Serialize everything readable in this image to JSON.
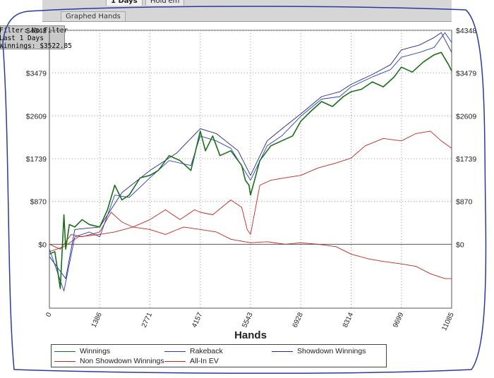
{
  "tabs": {
    "days_label": "1 Days",
    "hold_label": "Hold'em",
    "graphed_hands_label": "Graphed Hands"
  },
  "filter_info": {
    "line1": "Filter: No Filter",
    "line2": "Last  1 Days",
    "line3": "Winnings: $3522.85"
  },
  "colors": {
    "winnings": "#1a6e1a",
    "rakeback": "#2b3fbf",
    "showdown": "#1e2a8c",
    "non_showdown": "#c0271e",
    "all_in_ev": "#c0271e",
    "zero_line": "#555555",
    "grid": "#9a9a9a",
    "border_scribble": "#2a3a9e"
  },
  "chart_data": {
    "type": "line",
    "xlabel": "Hands",
    "ylabel": "",
    "xlim": [
      0,
      11085
    ],
    "ylim": [
      -1300,
      4348
    ],
    "x_ticks": [
      0,
      1386,
      2771,
      4157,
      5543,
      6928,
      8314,
      9699,
      11085
    ],
    "y_ticks": [
      0,
      870,
      1739,
      2609,
      3479,
      4348
    ],
    "y_tick_labels": [
      "$0",
      "$870",
      "$1739",
      "$2609",
      "$3479",
      "$4348"
    ],
    "grid": true,
    "legend_position": "bottom",
    "series": [
      {
        "name": "Winnings",
        "x": [
          0,
          150,
          300,
          400,
          450,
          550,
          700,
          900,
          1100,
          1386,
          1600,
          1800,
          2000,
          2200,
          2500,
          2771,
          3000,
          3300,
          3600,
          3900,
          4157,
          4300,
          4500,
          4700,
          5000,
          5300,
          5400,
          5500,
          5543,
          5800,
          6100,
          6400,
          6700,
          6928,
          7200,
          7500,
          7800,
          8100,
          8314,
          8600,
          8900,
          9200,
          9500,
          9699,
          10000,
          10300,
          10600,
          10800,
          11000,
          11085
        ],
        "values": [
          -200,
          -150,
          -900,
          600,
          -100,
          400,
          350,
          500,
          400,
          350,
          700,
          1200,
          900,
          1000,
          1350,
          1400,
          1500,
          1800,
          1700,
          1500,
          2300,
          1900,
          2200,
          1800,
          1900,
          1600,
          1300,
          1200,
          1000,
          1700,
          2000,
          2100,
          2200,
          2500,
          2700,
          2900,
          2800,
          3000,
          3100,
          3150,
          3300,
          3200,
          3400,
          3600,
          3500,
          3700,
          3850,
          3900,
          3650,
          3523
        ]
      },
      {
        "name": "Rakeback",
        "x": [
          0,
          400,
          700,
          1100,
          1386,
          1800,
          2200,
          2771,
          3300,
          3900,
          4157,
          4600,
          5000,
          5543,
          6000,
          6400,
          6928,
          7500,
          8000,
          8314,
          8900,
          9400,
          9699,
          10200,
          10600,
          10900,
          11085
        ],
        "values": [
          -100,
          -950,
          150,
          250,
          150,
          1000,
          950,
          1350,
          1700,
          1600,
          2200,
          2100,
          1950,
          1300,
          2000,
          2200,
          2600,
          2950,
          3000,
          3200,
          3400,
          3550,
          3800,
          3900,
          4000,
          4300,
          4100
        ]
      },
      {
        "name": "Showdown Winnings",
        "x": [
          0,
          450,
          700,
          1386,
          2000,
          2771,
          3500,
          4157,
          4600,
          5200,
          5543,
          6000,
          6500,
          6928,
          7500,
          8000,
          8314,
          8900,
          9400,
          9699,
          10200,
          10600,
          10800,
          11085
        ],
        "values": [
          -250,
          -700,
          300,
          350,
          1050,
          1500,
          1850,
          2350,
          2250,
          1900,
          1400,
          2100,
          2400,
          2650,
          3000,
          3100,
          3250,
          3450,
          3650,
          3950,
          4050,
          4200,
          4300,
          3900
        ]
      },
      {
        "name": "Non Showdown Winnings",
        "x": [
          0,
          300,
          600,
          900,
          1386,
          1700,
          2000,
          2300,
          2771,
          3200,
          3600,
          4000,
          4157,
          4500,
          5000,
          5300,
          5450,
          5543,
          5800,
          6100,
          6500,
          6928,
          7400,
          7900,
          8314,
          8700,
          9200,
          9699,
          10100,
          10500,
          10800,
          11085
        ],
        "values": [
          0,
          -100,
          200,
          150,
          250,
          650,
          450,
          350,
          500,
          700,
          500,
          700,
          650,
          600,
          900,
          750,
          300,
          200,
          1200,
          1300,
          1350,
          1400,
          1550,
          1650,
          1750,
          2000,
          2150,
          2100,
          2250,
          2300,
          2100,
          1950
        ]
      },
      {
        "name": "All-In EV",
        "x": [
          0,
          400,
          800,
          1386,
          1800,
          2300,
          2771,
          3200,
          3700,
          4157,
          4600,
          5000,
          5543,
          6000,
          6500,
          6928,
          7400,
          7900,
          8314,
          8800,
          9200,
          9699,
          10100,
          10500,
          10900,
          11085
        ],
        "values": [
          -150,
          -50,
          150,
          200,
          250,
          350,
          300,
          200,
          350,
          300,
          250,
          100,
          30,
          50,
          0,
          30,
          0,
          -50,
          -200,
          -300,
          -350,
          -400,
          -450,
          -600,
          -700,
          -700
        ]
      }
    ]
  },
  "legend": {
    "winnings": "Winnings",
    "rakeback": "Rakeback",
    "showdown": "Showdown Winnings",
    "non_showdown": "Non Showdown Winnings",
    "all_in_ev": "All-In EV"
  }
}
